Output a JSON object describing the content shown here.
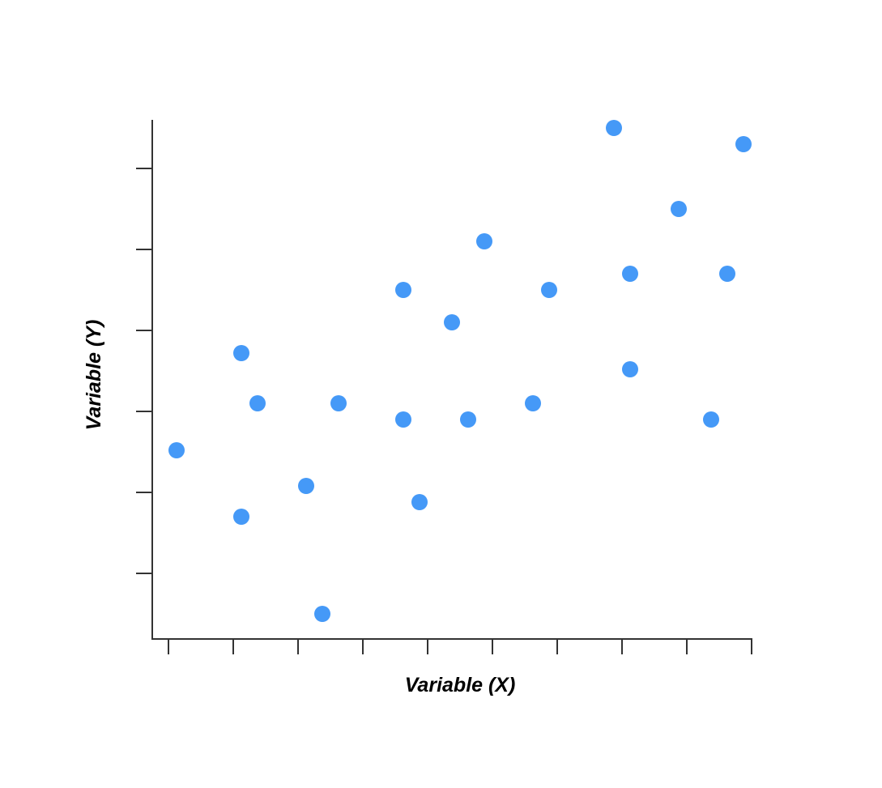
{
  "chart_data": {
    "type": "scatter",
    "title": "",
    "xlabel": "Variable (X)",
    "ylabel": "Variable (Y)",
    "xlim": [
      0,
      36
    ],
    "ylim": [
      0,
      32
    ],
    "x_ticks": [
      1,
      5,
      9,
      13,
      17,
      21,
      25,
      29,
      33,
      37
    ],
    "y_ticks": [
      4,
      9,
      14,
      19,
      24,
      29
    ],
    "show_tick_labels": false,
    "grid": false,
    "legend": "none",
    "marker_color": "#4599f7",
    "axis_color": "#333333",
    "points": [
      {
        "x": 1.5,
        "y": 11.6
      },
      {
        "x": 5.5,
        "y": 17.6
      },
      {
        "x": 6.5,
        "y": 14.5
      },
      {
        "x": 5.5,
        "y": 7.5
      },
      {
        "x": 9.5,
        "y": 9.4
      },
      {
        "x": 10.5,
        "y": 1.5
      },
      {
        "x": 11.5,
        "y": 14.5
      },
      {
        "x": 15.5,
        "y": 13.5
      },
      {
        "x": 15.5,
        "y": 21.5
      },
      {
        "x": 16.5,
        "y": 8.4
      },
      {
        "x": 18.5,
        "y": 19.5
      },
      {
        "x": 19.5,
        "y": 13.5
      },
      {
        "x": 20.5,
        "y": 24.5
      },
      {
        "x": 23.5,
        "y": 14.5
      },
      {
        "x": 24.5,
        "y": 21.5
      },
      {
        "x": 28.5,
        "y": 31.5
      },
      {
        "x": 29.5,
        "y": 22.5
      },
      {
        "x": 29.5,
        "y": 16.6
      },
      {
        "x": 32.5,
        "y": 26.5
      },
      {
        "x": 34.5,
        "y": 13.5
      },
      {
        "x": 35.5,
        "y": 22.5
      },
      {
        "x": 36.5,
        "y": 30.5
      }
    ]
  }
}
